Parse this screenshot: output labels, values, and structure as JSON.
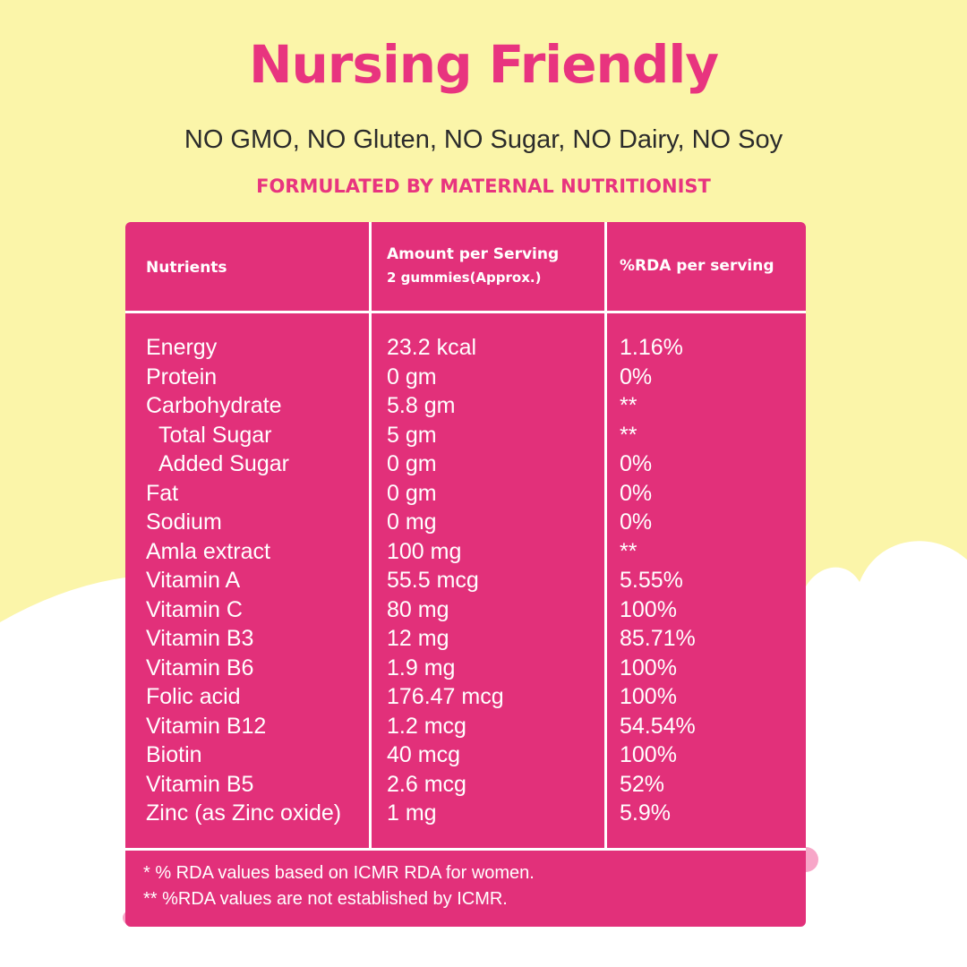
{
  "header": {
    "title": "Nursing Friendly",
    "subtitle": "NO GMO, NO Gluten, NO Sugar, NO Dairy, NO Soy",
    "tagline": "FORMULATED BY MATERNAL NUTRITIONIST"
  },
  "table": {
    "headers": [
      "Nutrients",
      [
        "Amount per Serving",
        "2 gummies(Approx.)"
      ],
      "%RDA per serving"
    ],
    "rows": [
      [
        "Energy",
        "23.2 kcal",
        "1.16%"
      ],
      [
        "Protein",
        "0 gm",
        "0%"
      ],
      [
        "Carbohydrate",
        "5.8 gm",
        "**"
      ],
      [
        "Total Sugar",
        "5 gm",
        "**"
      ],
      [
        "Added Sugar",
        "0 gm",
        "0%"
      ],
      [
        "Fat",
        "0 gm",
        "0%"
      ],
      [
        "Sodium",
        "0 mg",
        "0%"
      ],
      [
        "Amla extract",
        "100 mg",
        "**"
      ],
      [
        "Vitamin A",
        "55.5 mcg",
        "5.55%"
      ],
      [
        "Vitamin C",
        "80 mg",
        "100%"
      ],
      [
        "Vitamin B3",
        "12 mg",
        "85.71%"
      ],
      [
        "Vitamin B6",
        "1.9 mg",
        "100%"
      ],
      [
        "Folic acid",
        "176.47 mcg",
        "100%"
      ],
      [
        "Vitamin B12",
        "1.2 mcg",
        "54.54%"
      ],
      [
        "Biotin",
        "40 mcg",
        "100%"
      ],
      [
        "Vitamin B5",
        "2.6 mcg",
        "52%"
      ],
      [
        "Zinc (as Zinc oxide)",
        "1 mg",
        "5.9%"
      ]
    ],
    "footnotes": [
      "* % RDA values based on ICMR RDA for women.",
      "** %RDA values are not established by ICMR."
    ]
  }
}
